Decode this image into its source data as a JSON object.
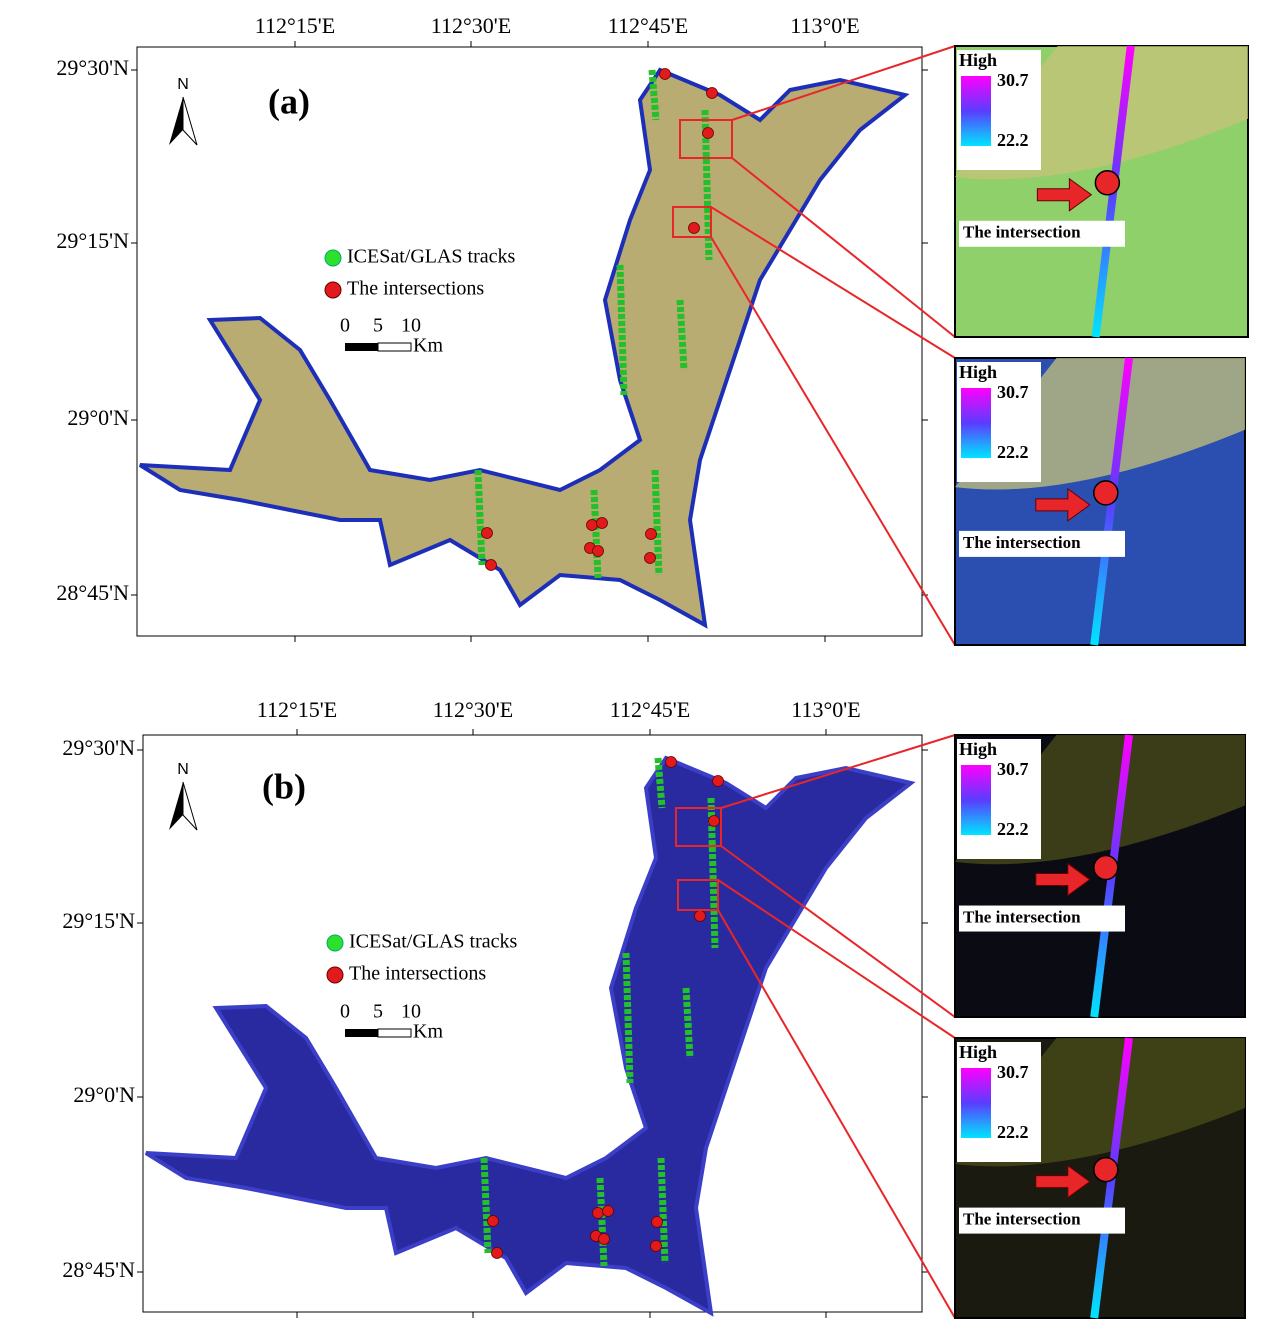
{
  "panels": [
    {
      "label": "(a)",
      "north": "N",
      "lon_ticks": [
        "112°15'E",
        "112°30'E",
        "112°45'E",
        "113°0'E"
      ],
      "lat_ticks": [
        "29°30'N",
        "29°15'N",
        "29°0'N",
        "28°45'N"
      ],
      "legend": [
        "ICESat/GLAS tracks",
        "The intersections"
      ],
      "scale": {
        "labels": [
          0,
          5,
          10
        ],
        "unit": "Km"
      },
      "insets": [
        {
          "title": "High",
          "max": 30.7,
          "min": 22.2,
          "caption": "The intersection"
        },
        {
          "title": "High",
          "max": 30.7,
          "min": 22.2,
          "caption": "The intersection"
        }
      ]
    },
    {
      "label": "(b)",
      "north": "N",
      "lon_ticks": [
        "112°15'E",
        "112°30'E",
        "112°45'E",
        "113°0'E"
      ],
      "lat_ticks": [
        "29°30'N",
        "29°15'N",
        "29°0'N",
        "28°45'N"
      ],
      "legend": [
        "ICESat/GLAS tracks",
        "The intersections"
      ],
      "scale": {
        "labels": [
          0,
          5,
          10
        ],
        "unit": "Km"
      },
      "insets": [
        {
          "title": "High",
          "max": 30.7,
          "min": 22.2,
          "caption": "The intersection"
        },
        {
          "title": "High",
          "max": 30.7,
          "min": 22.2,
          "caption": "The intersection"
        }
      ]
    }
  ]
}
